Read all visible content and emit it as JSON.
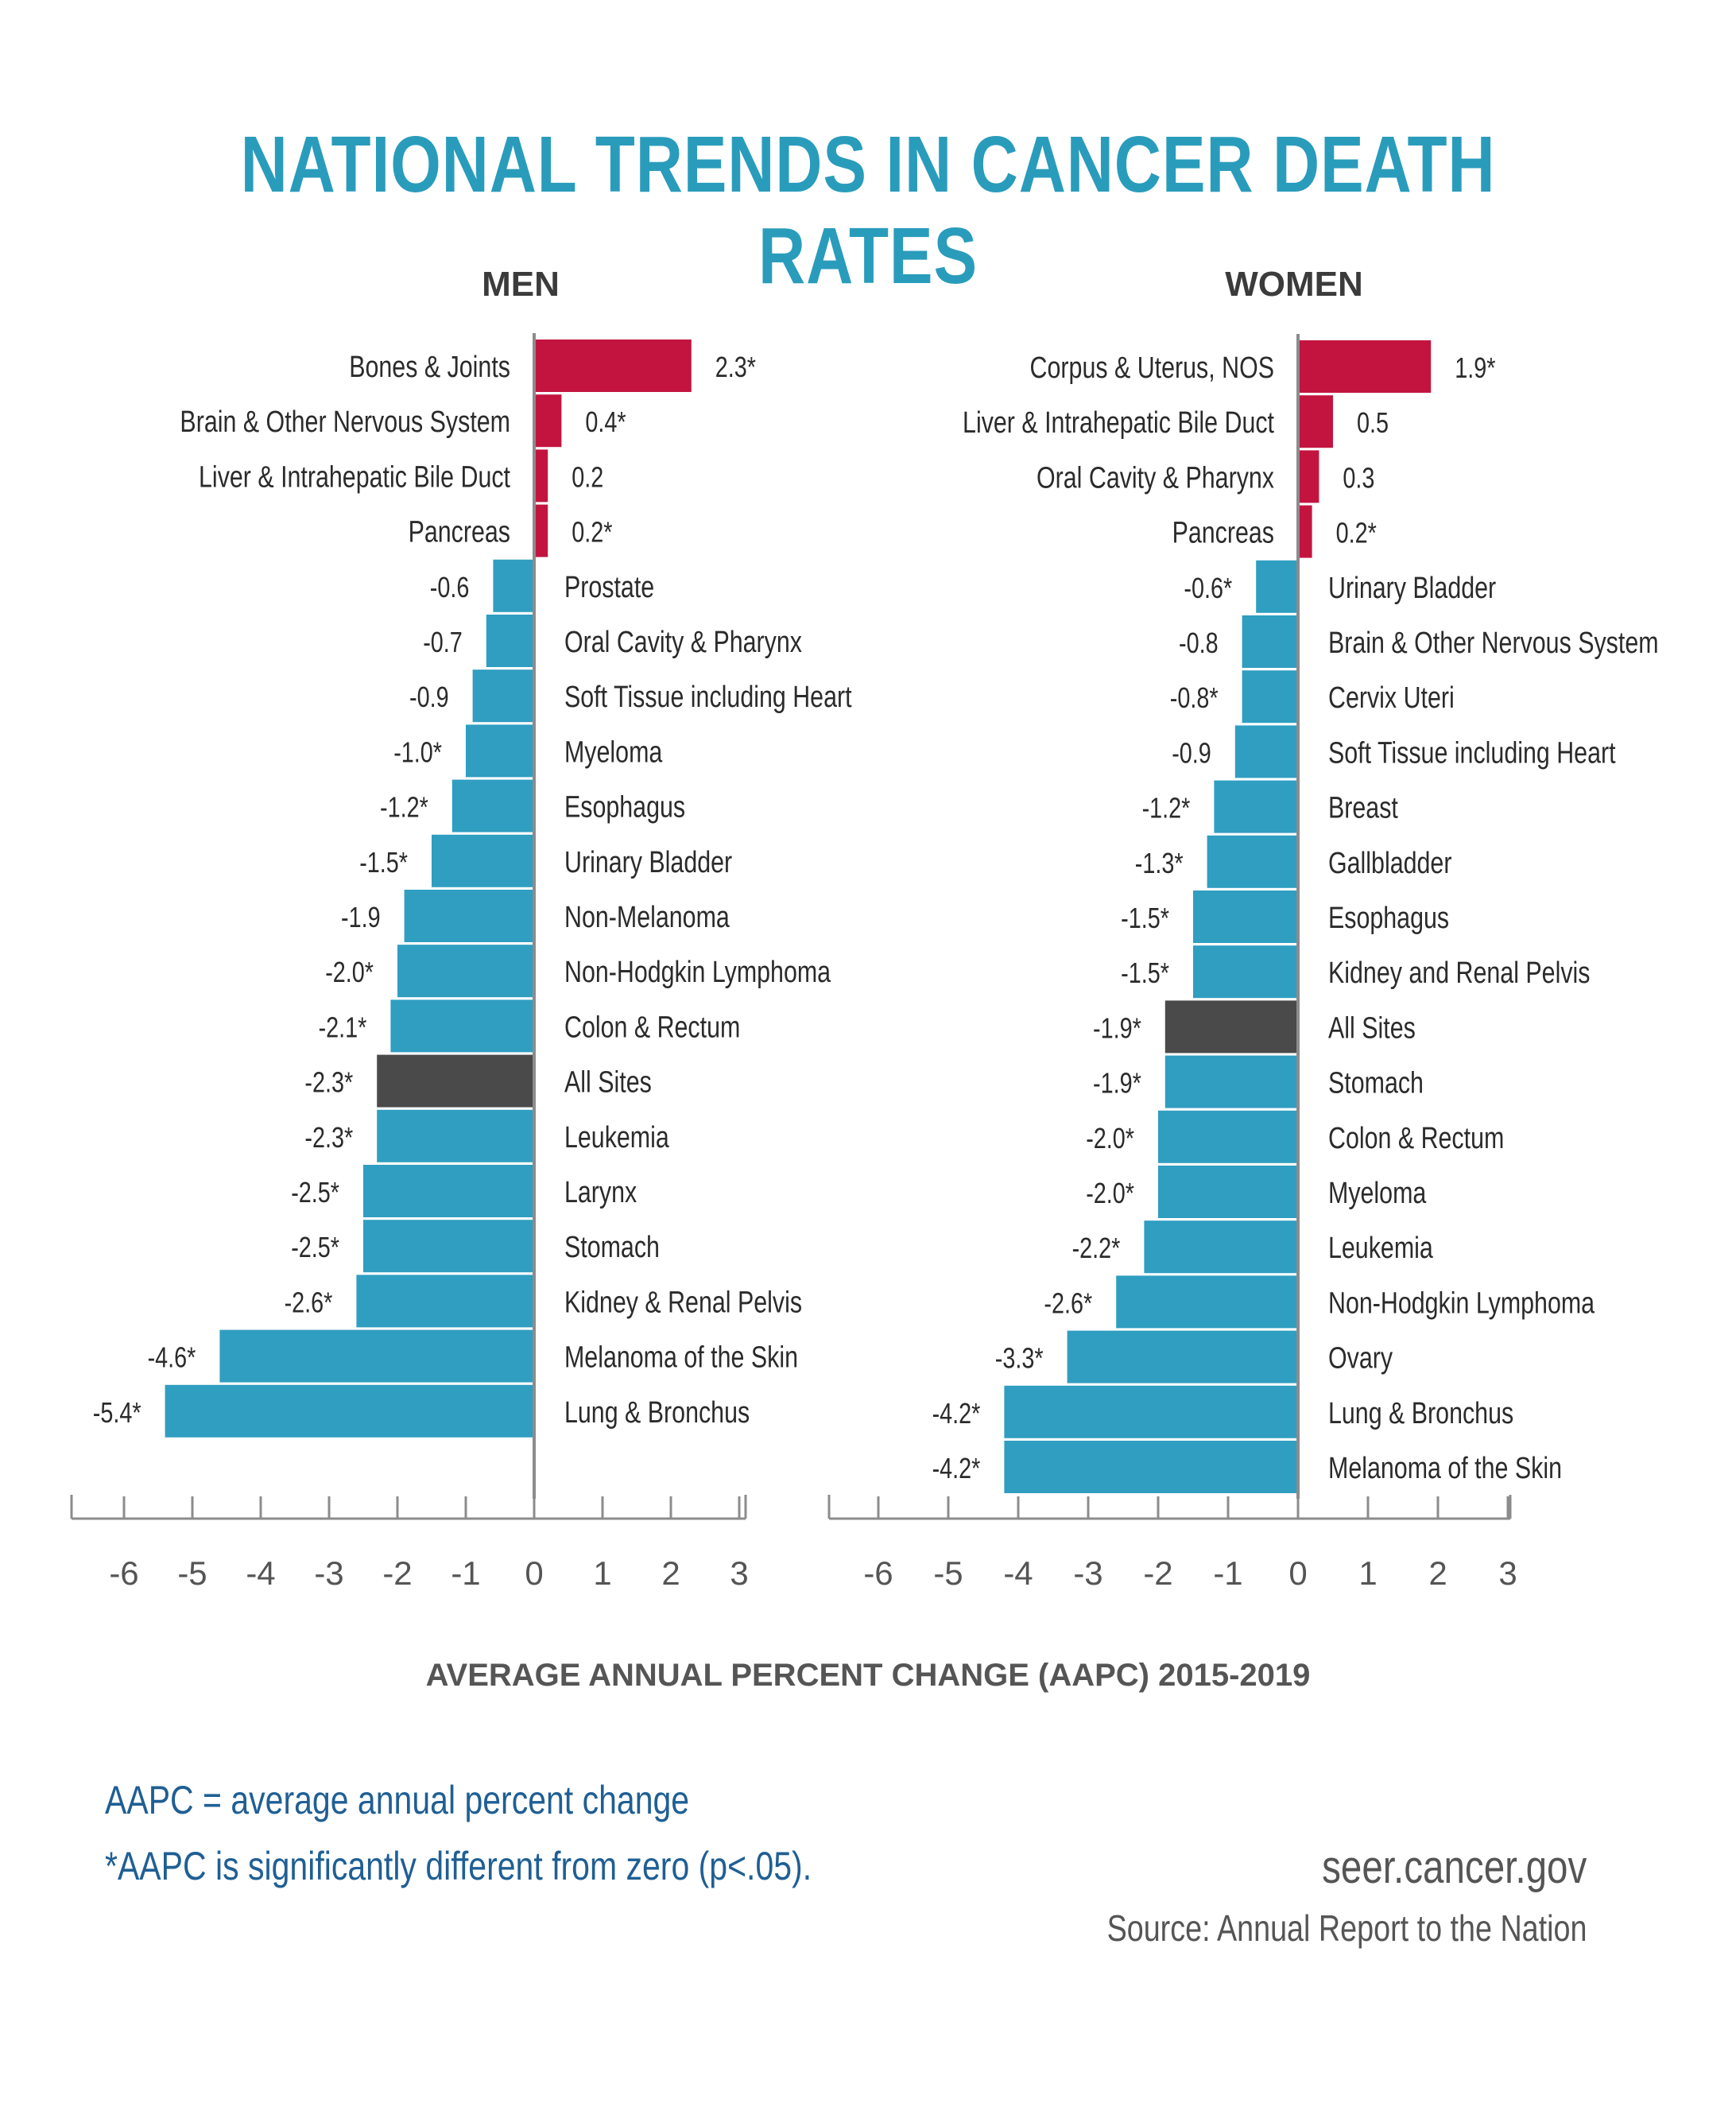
{
  "header": {
    "title": "NATIONAL TRENDS IN CANCER DEATH RATES"
  },
  "colors": {
    "positive": "#c3143f",
    "negative": "#2f9ec1",
    "all_sites": "#4a4a4a",
    "axis": "#8c8c8c",
    "title": "#2a9cbb",
    "footnote": "#1f5f94"
  },
  "chart_data": [
    {
      "type": "bar",
      "orientation": "horizontal",
      "title": "MEN",
      "xlabel": "AVERAGE ANNUAL PERCENT CHANGE (AAPC) 2015-2019",
      "xlim": [
        -7,
        3
      ],
      "xticks": [
        -6,
        -5,
        -4,
        -3,
        -2,
        -1,
        0,
        1,
        2,
        3
      ],
      "categories": [
        "Bones & Joints",
        "Brain & Other Nervous System",
        "Liver & Intrahepatic Bile Duct",
        "Pancreas",
        "Prostate",
        "Oral Cavity & Pharynx",
        "Soft Tissue including Heart",
        "Myeloma",
        "Esophagus",
        "Urinary Bladder",
        "Non-Melanoma",
        "Non-Hodgkin Lymphoma",
        "Colon & Rectum",
        "All Sites",
        "Leukemia",
        "Larynx",
        "Stomach",
        "Kidney & Renal Pelvis",
        "Melanoma of the Skin",
        "Lung & Bronchus"
      ],
      "values": [
        2.3,
        0.4,
        0.2,
        0.2,
        -0.6,
        -0.7,
        -0.9,
        -1.0,
        -1.2,
        -1.5,
        -1.9,
        -2.0,
        -2.1,
        -2.3,
        -2.3,
        -2.5,
        -2.5,
        -2.6,
        -4.6,
        -5.4
      ],
      "value_labels": [
        "2.3*",
        "0.4*",
        "0.2",
        "0.2*",
        "-0.6",
        "-0.7",
        "-0.9",
        "-1.0*",
        "-1.2*",
        "-1.5*",
        "-1.9",
        "-2.0*",
        "-2.1*",
        "-2.3*",
        "-2.3*",
        "-2.5*",
        "-2.5*",
        "-2.6*",
        "-4.6*",
        "-5.4*"
      ],
      "highlight": "All Sites"
    },
    {
      "type": "bar",
      "orientation": "horizontal",
      "title": "WOMEN",
      "xlabel": "AVERAGE ANNUAL PERCENT CHANGE (AAPC) 2015-2019",
      "xlim": [
        -7,
        3
      ],
      "xticks": [
        -6,
        -5,
        -4,
        -3,
        -2,
        -1,
        0,
        1,
        2,
        3
      ],
      "categories": [
        "Corpus & Uterus, NOS",
        "Liver & Intrahepatic Bile Duct",
        "Oral Cavity & Pharynx",
        "Pancreas",
        "Urinary Bladder",
        "Brain & Other Nervous System",
        "Cervix Uteri",
        "Soft Tissue including Heart",
        "Breast",
        "Gallbladder",
        "Esophagus",
        "Kidney and Renal Pelvis",
        "All Sites",
        "Stomach",
        "Colon & Rectum",
        "Myeloma",
        "Leukemia",
        "Non-Hodgkin Lymphoma",
        "Ovary",
        "Lung & Bronchus",
        "Melanoma of the Skin"
      ],
      "values": [
        1.9,
        0.5,
        0.3,
        0.2,
        -0.6,
        -0.8,
        -0.8,
        -0.9,
        -1.2,
        -1.3,
        -1.5,
        -1.5,
        -1.9,
        -1.9,
        -2.0,
        -2.0,
        -2.2,
        -2.6,
        -3.3,
        -4.2,
        -4.2
      ],
      "value_labels": [
        "1.9*",
        "0.5",
        "0.3",
        "0.2*",
        "-0.6*",
        "-0.8",
        "-0.8*",
        "-0.9",
        "-1.2*",
        "-1.3*",
        "-1.5*",
        "-1.5*",
        "-1.9*",
        "-1.9*",
        "-2.0*",
        "-2.0*",
        "-2.2*",
        "-2.6*",
        "-3.3*",
        "-4.2*",
        "-4.2*"
      ],
      "highlight": "All Sites"
    }
  ],
  "footnotes": {
    "aapc_definition": "AAPC = average annual percent change",
    "significance": "*AAPC is significantly different from zero (p<.05)."
  },
  "credit": {
    "url": "seer.cancer.gov",
    "source": "Source: Annual Report to the Nation"
  }
}
